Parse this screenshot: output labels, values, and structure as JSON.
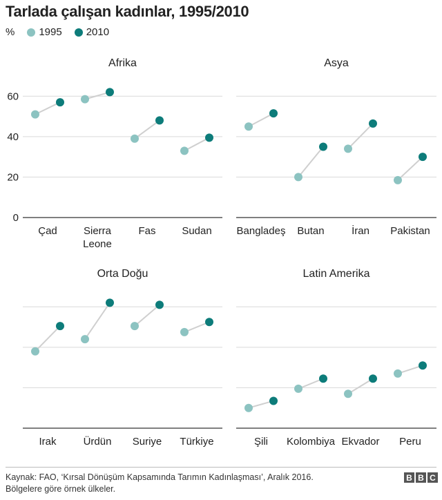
{
  "title": "Tarlada çalışan kadınlar, 1995/2010",
  "legend": {
    "unit": "%",
    "series": [
      {
        "name": "1995",
        "color": "#8cc3c1"
      },
      {
        "name": "2010",
        "color": "#0d7c7a"
      }
    ]
  },
  "chart_data": [
    {
      "type": "dumbbell",
      "title": "Afrika",
      "categories": [
        "Çad",
        "Sierra Leone",
        "Fas",
        "Sudan"
      ],
      "series": [
        {
          "name": "1995",
          "values": [
            51,
            58.5,
            39,
            33
          ]
        },
        {
          "name": "2010",
          "values": [
            57,
            62,
            48,
            39.5
          ]
        }
      ],
      "ylim": [
        0,
        70
      ],
      "yticks": [
        0,
        20,
        40,
        60
      ]
    },
    {
      "type": "dumbbell",
      "title": "Asya",
      "categories": [
        "Bangladeş",
        "Butan",
        "İran",
        "Pakistan"
      ],
      "series": [
        {
          "name": "1995",
          "values": [
            45,
            20,
            34,
            18.5
          ]
        },
        {
          "name": "2010",
          "values": [
            51.5,
            35,
            46.5,
            30
          ]
        }
      ],
      "ylim": [
        0,
        70
      ],
      "yticks": [
        0,
        20,
        40,
        60
      ]
    },
    {
      "type": "dumbbell",
      "title": "Orta Doğu",
      "categories": [
        "Irak",
        "Ürdün",
        "Suriye",
        "Türkiye"
      ],
      "series": [
        {
          "name": "1995",
          "values": [
            38,
            44,
            50.5,
            47.5
          ]
        },
        {
          "name": "2010",
          "values": [
            50.5,
            62,
            61,
            52.5
          ]
        }
      ],
      "ylim": [
        0,
        70
      ],
      "yticks": [
        0,
        20,
        40,
        60
      ]
    },
    {
      "type": "dumbbell",
      "title": "Latin Amerika",
      "categories": [
        "Şili",
        "Kolombiya",
        "Ekvador",
        "Peru"
      ],
      "series": [
        {
          "name": "1995",
          "values": [
            10,
            19.5,
            17,
            27
          ]
        },
        {
          "name": "2010",
          "values": [
            13.5,
            24.5,
            24.5,
            31
          ]
        }
      ],
      "ylim": [
        0,
        70
      ],
      "yticks": [
        0,
        20,
        40,
        60
      ]
    }
  ],
  "footer": {
    "source": "Kaynak: FAO, ‘Kırsal Dönüşüm Kapsamında Tarımın Kadınlaşması’, Aralık 2016.",
    "note": "Bölgelere göre örnek ülkeler.",
    "logo": [
      "B",
      "B",
      "C"
    ]
  }
}
